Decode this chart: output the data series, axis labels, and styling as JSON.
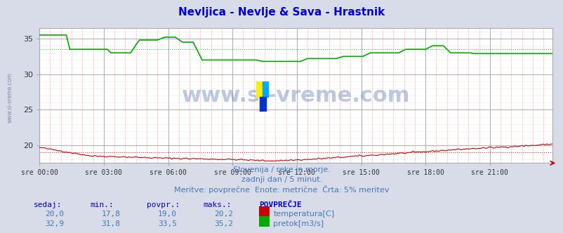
{
  "title": "Nevljica - Nevlje & Sava - Hrastnik",
  "title_color": "#0000cc",
  "bg_color": "#d8dce8",
  "plot_bg_color": "#ffffff",
  "x_tick_labels": [
    "sre 00:00",
    "sre 03:00",
    "sre 06:00",
    "sre 09:00",
    "sre 12:00",
    "sre 15:00",
    "sre 18:00",
    "sre 21:00"
  ],
  "x_tick_positions": [
    0,
    36,
    72,
    108,
    144,
    180,
    216,
    252
  ],
  "n_points": 288,
  "ylim": [
    17.5,
    36.5
  ],
  "yticks": [
    20,
    25,
    30,
    35
  ],
  "temp_color": "#cc0000",
  "flow_color": "#00aa00",
  "avg_temp": 19.0,
  "avg_flow": 33.5,
  "temp_min": 17.8,
  "temp_max": 20.2,
  "flow_min": 31.8,
  "flow_max": 35.2,
  "temp_current": 20.0,
  "flow_current": 32.9,
  "watermark": "www.si-vreme.com",
  "watermark_color": "#4466aa",
  "subtitle1": "Slovenija / reke in morje.",
  "subtitle2": "zadnji dan / 5 minut.",
  "subtitle3": "Meritve: povprečne  Enote: metrične  Črta: 5% meritev",
  "subtitle_color": "#4477bb",
  "label_color": "#0000cc",
  "legend_title": "POVPREČJE",
  "legend_temp": "temperatura[C]",
  "legend_flow": "pretok[m3/s]",
  "left_label": "www.si-vreme.com",
  "left_label_color": "#8888aa"
}
